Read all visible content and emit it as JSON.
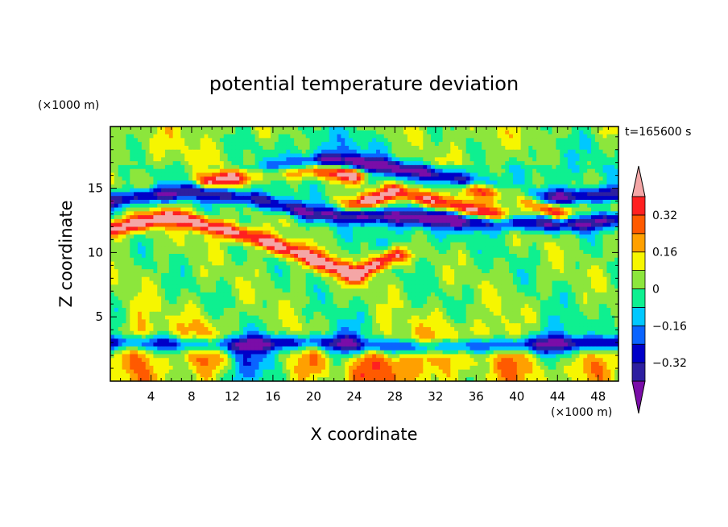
{
  "chart_data": {
    "type": "heatmap",
    "title": "potential temperature deviation",
    "xlabel": "X coordinate",
    "ylabel": "Z coordinate",
    "x_unit": "(×1000 m)",
    "y_unit": "(×1000 m)",
    "time_label": "t=165600 s",
    "xlim": [
      0,
      50
    ],
    "ylim": [
      0,
      19.8
    ],
    "x_ticks": [
      4,
      8,
      12,
      16,
      20,
      24,
      28,
      32,
      36,
      40,
      44,
      48
    ],
    "y_ticks": [
      5,
      10,
      15
    ],
    "colorbar": {
      "levels": [
        -0.4,
        -0.32,
        -0.24,
        -0.16,
        -0.08,
        0,
        0.08,
        0.16,
        0.24,
        0.32,
        0.4
      ],
      "labels": [
        "0.32",
        "0.16",
        "0",
        "−0.16",
        "−0.32"
      ],
      "label_values": [
        0.32,
        0.16,
        0,
        -0.16,
        -0.32
      ],
      "colors": [
        "#7a0da8",
        "#2d1fa0",
        "#0000c8",
        "#0a64ff",
        "#00c8ff",
        "#0ef090",
        "#8ce63c",
        "#f6f600",
        "#ffa000",
        "#ff5a00",
        "#ff2020",
        "#f4a6a6"
      ],
      "extend": "both"
    },
    "features": [
      {
        "label": "warm band",
        "value": 0.45,
        "points": [
          [
            0,
            11.8
          ],
          [
            6,
            12.8
          ],
          [
            14,
            11.2
          ],
          [
            20,
            9.5
          ],
          [
            24,
            8.2
          ],
          [
            28,
            9.8
          ]
        ]
      },
      {
        "label": "warm band",
        "value": 0.45,
        "points": [
          [
            10,
            15.5
          ],
          [
            14,
            16.2
          ],
          [
            20,
            16.5
          ],
          [
            24,
            16
          ]
        ]
      },
      {
        "label": "warm band",
        "value": 0.45,
        "points": [
          [
            24,
            13.6
          ],
          [
            28,
            14.8
          ],
          [
            32,
            14
          ],
          [
            38,
            12.8
          ]
        ]
      },
      {
        "label": "warm band",
        "value": 0.45,
        "points": [
          [
            36,
            15
          ],
          [
            40,
            14.6
          ],
          [
            44,
            13
          ]
        ]
      },
      {
        "label": "cold band",
        "value": -0.4,
        "points": [
          [
            0,
            14
          ],
          [
            8,
            14.8
          ],
          [
            14,
            14.2
          ],
          [
            20,
            13
          ],
          [
            28,
            12.8
          ],
          [
            36,
            12.4
          ],
          [
            46,
            12.2
          ],
          [
            50,
            12.6
          ]
        ]
      },
      {
        "label": "cold band",
        "value": -0.4,
        "points": [
          [
            14,
            16.3
          ],
          [
            22,
            17.2
          ],
          [
            28,
            16.6
          ],
          [
            34,
            15.8
          ],
          [
            42,
            14.2
          ],
          [
            50,
            14.6
          ]
        ]
      },
      {
        "label": "cold band",
        "value": -0.35,
        "points": [
          [
            0,
            3
          ],
          [
            10,
            2.8
          ],
          [
            20,
            3
          ],
          [
            30,
            2.6
          ],
          [
            40,
            2.8
          ],
          [
            50,
            3
          ]
        ]
      }
    ],
    "blobs": [
      {
        "x": 26,
        "z": 1.2,
        "value": 0.32,
        "sx": 2.6,
        "sz": 1.6
      },
      {
        "x": 33,
        "z": 1.5,
        "value": 0.3,
        "sx": 2.2,
        "sz": 1.8
      },
      {
        "x": 3,
        "z": 1.8,
        "value": 0.28,
        "sx": 1.2,
        "sz": 2.2
      },
      {
        "x": 9,
        "z": 2.2,
        "value": 0.26,
        "sx": 1.6,
        "sz": 1.8
      },
      {
        "x": 19,
        "z": 1.5,
        "value": 0.24,
        "sx": 2.0,
        "sz": 1.4
      },
      {
        "x": 38,
        "z": 2.0,
        "value": 0.24,
        "sx": 1.6,
        "sz": 1.6
      },
      {
        "x": 41,
        "z": 1.0,
        "value": 0.26,
        "sx": 1.6,
        "sz": 1.2
      },
      {
        "x": 47,
        "z": 1.5,
        "value": 0.22,
        "sx": 1.8,
        "sz": 1.6
      },
      {
        "x": 14,
        "z": 1.2,
        "value": -0.28,
        "sx": 1.8,
        "sz": 1.4
      },
      {
        "x": 23,
        "z": 2.5,
        "value": -0.26,
        "sx": 1.6,
        "sz": 1.5
      },
      {
        "x": 35,
        "z": 1.0,
        "value": -0.24,
        "sx": 2.2,
        "sz": 1.2
      },
      {
        "x": 44,
        "z": 2.6,
        "value": -0.26,
        "sx": 1.8,
        "sz": 1.4
      },
      {
        "x": 22,
        "z": 17.8,
        "value": -0.16,
        "sx": 5.0,
        "sz": 1.5
      },
      {
        "x": 30,
        "z": 12.3,
        "value": -0.12,
        "sx": 4.0,
        "sz": 1.5
      },
      {
        "x": 45,
        "z": 17.2,
        "value": -0.12,
        "sx": 3.0,
        "sz": 1.4
      }
    ]
  }
}
